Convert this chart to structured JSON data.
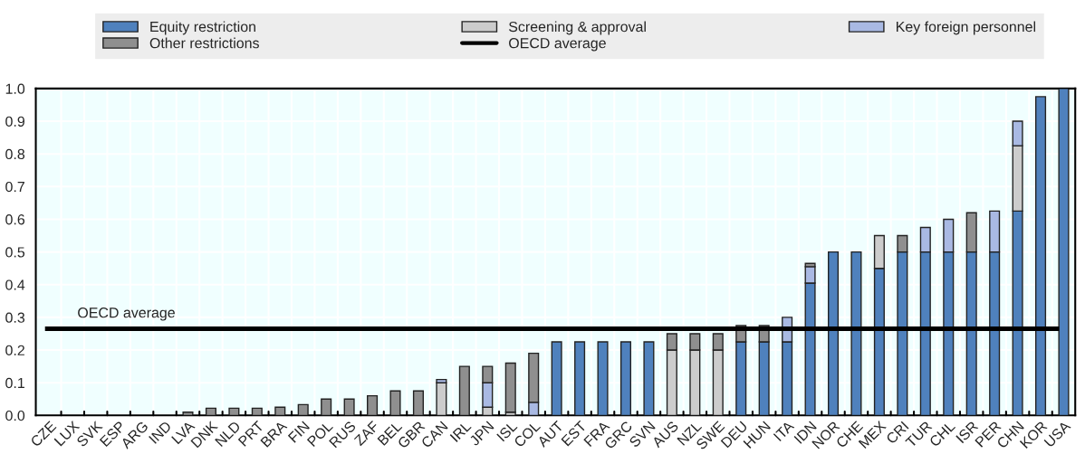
{
  "chart_data": {
    "type": "bar",
    "stacked": true,
    "categories": [
      "CZE",
      "LUX",
      "SVK",
      "ESP",
      "ARG",
      "IND",
      "LVA",
      "DNK",
      "NLD",
      "PRT",
      "BRA",
      "FIN",
      "POL",
      "RUS",
      "ZAF",
      "BEL",
      "GBR",
      "CAN",
      "IRL",
      "JPN",
      "ISL",
      "COL",
      "AUT",
      "EST",
      "FRA",
      "GRC",
      "SVN",
      "AUS",
      "NZL",
      "SWE",
      "DEU",
      "HUN",
      "ITA",
      "IDN",
      "NOR",
      "CHE",
      "MEX",
      "CRI",
      "TUR",
      "CHL",
      "ISR",
      "PER",
      "CHN",
      "KOR",
      "USA"
    ],
    "series": [
      {
        "name": "Equity restriction",
        "color": "#4f81bd",
        "values": [
          0,
          0,
          0,
          0,
          0,
          0,
          0,
          0,
          0,
          0,
          0,
          0,
          0,
          0,
          0,
          0,
          0,
          0,
          0,
          0,
          0,
          0,
          0.225,
          0.225,
          0.225,
          0.225,
          0.225,
          0,
          0,
          0,
          0.225,
          0.225,
          0.225,
          0.405,
          0.5,
          0.5,
          0.45,
          0.5,
          0.5,
          0.5,
          0.5,
          0.5,
          0.625,
          0.975,
          1.0
        ]
      },
      {
        "name": "Screening & approval",
        "color": "#cccccc",
        "values": [
          0,
          0,
          0,
          0,
          0,
          0,
          0,
          0,
          0,
          0,
          0,
          0,
          0,
          0,
          0,
          0,
          0,
          0.1,
          0,
          0.025,
          0.01,
          0,
          0,
          0,
          0,
          0,
          0,
          0.2,
          0.2,
          0.2,
          0,
          0,
          0,
          0,
          0,
          0,
          0.1,
          0,
          0,
          0,
          0,
          0,
          0.2,
          0,
          0
        ]
      },
      {
        "name": "Key foreign personnel",
        "color": "#a9b9e3",
        "values": [
          0,
          0,
          0,
          0,
          0,
          0,
          0,
          0,
          0,
          0,
          0,
          0,
          0,
          0,
          0,
          0,
          0,
          0.01,
          0,
          0.075,
          0,
          0.04,
          0,
          0,
          0,
          0,
          0,
          0,
          0,
          0,
          0,
          0,
          0.075,
          0.05,
          0,
          0,
          0,
          0,
          0.075,
          0.1,
          0,
          0.125,
          0.075,
          0,
          0
        ]
      },
      {
        "name": "Other restrictions",
        "color": "#8f8f8f",
        "values": [
          0,
          0,
          0,
          0,
          0,
          0,
          0.01,
          0.022,
          0.022,
          0.022,
          0.025,
          0.033,
          0.05,
          0.05,
          0.06,
          0.075,
          0.075,
          0,
          0.15,
          0.05,
          0.15,
          0.15,
          0,
          0,
          0,
          0,
          0,
          0.05,
          0.05,
          0.05,
          0.05,
          0.05,
          0,
          0.01,
          0,
          0,
          0,
          0.05,
          0,
          0,
          0.12,
          0,
          0,
          0,
          0
        ]
      }
    ],
    "ylim": [
      0.0,
      1.0
    ],
    "yticks": [
      {
        "value": 0,
        "label": "0.0"
      },
      0.1,
      0.2,
      0.3,
      0.4,
      0.5,
      0.6,
      0.7,
      0.8,
      0.9,
      {
        "value": 1,
        "label": "1.0"
      }
    ],
    "ref_lines": [
      {
        "axis": "y",
        "value": 0.265,
        "label": "OECD average",
        "color": "#000000"
      }
    ],
    "grid": true,
    "legend": "top"
  }
}
